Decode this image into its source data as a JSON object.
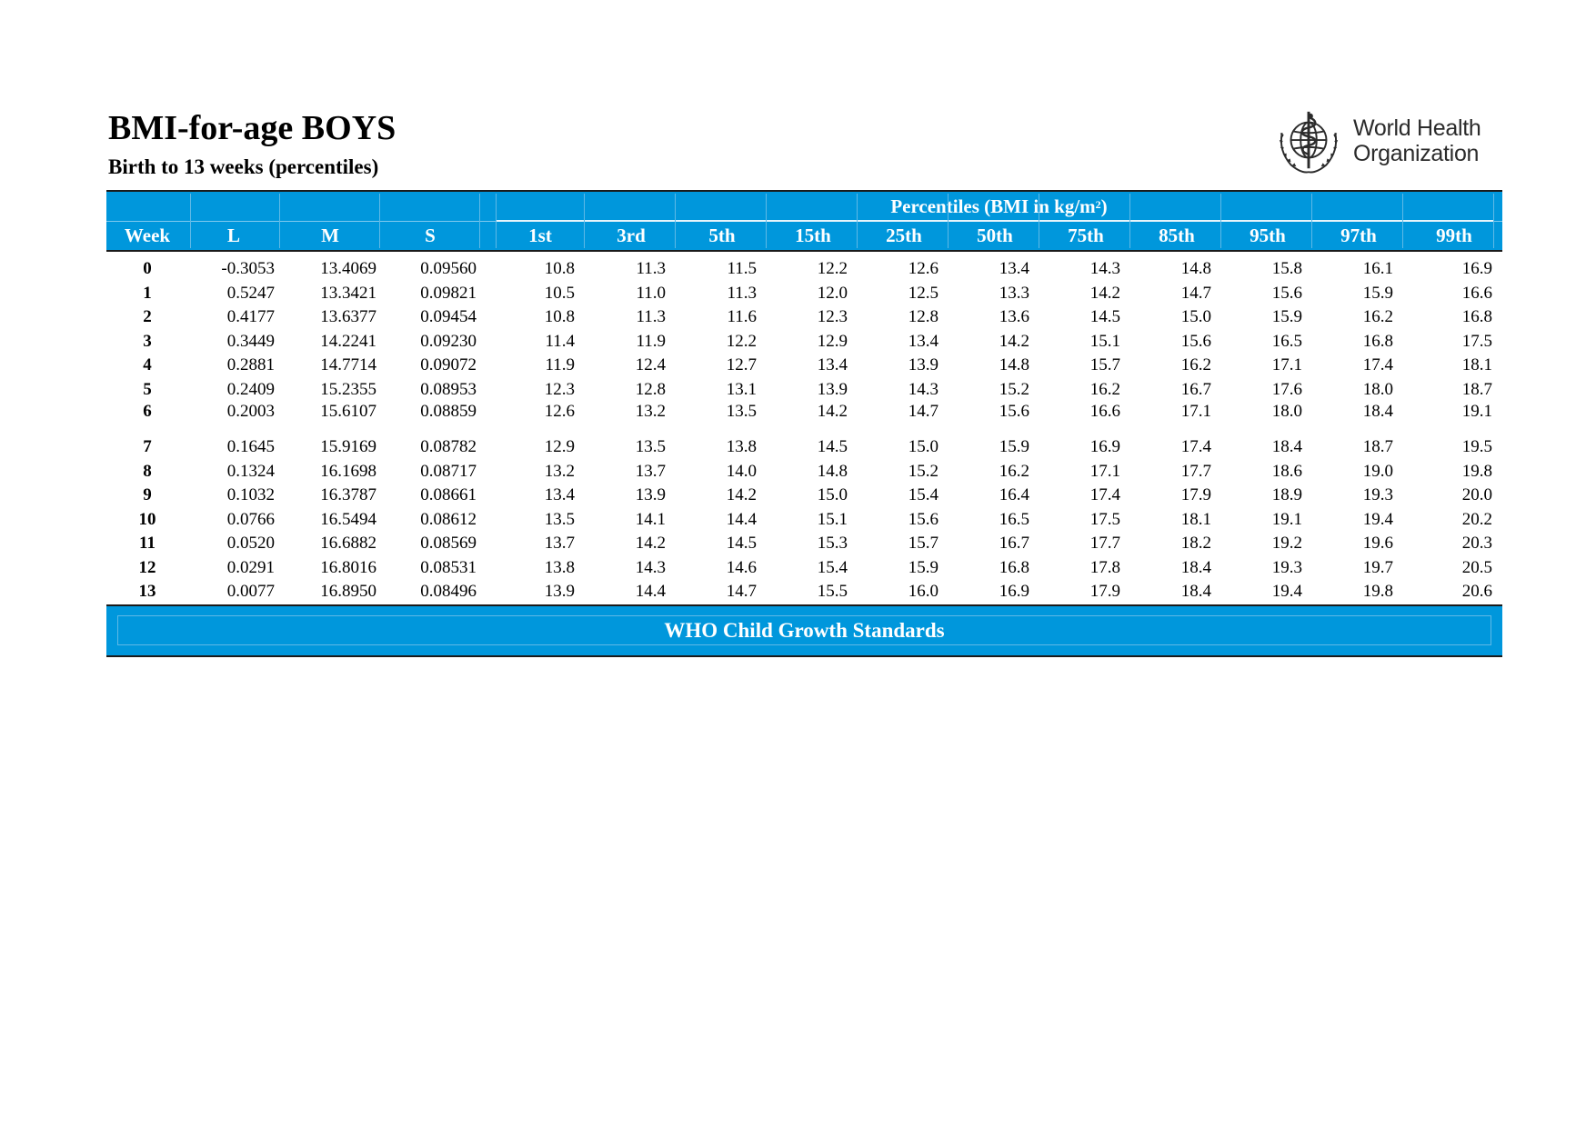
{
  "title": "BMI-for-age BOYS",
  "subtitle": "Birth to 13 weeks (percentiles)",
  "logo": {
    "line1": "World Health",
    "line2": "Organization",
    "icon": "who-emblem-icon"
  },
  "header": {
    "percentiles_title": "Percentiles (BMI in kg/m",
    "percentiles_sup": "2",
    "percentiles_close": ")",
    "columns": [
      "Week",
      "L",
      "M",
      "S",
      "1st",
      "3rd",
      "5th",
      "15th",
      "25th",
      "50th",
      "75th",
      "85th",
      "95th",
      "97th",
      "99th"
    ]
  },
  "rows": [
    [
      "0",
      "-0.3053",
      "13.4069",
      "0.09560",
      "10.8",
      "11.3",
      "11.5",
      "12.2",
      "12.6",
      "13.4",
      "14.3",
      "14.8",
      "15.8",
      "16.1",
      "16.9"
    ],
    [
      "1",
      "0.5247",
      "13.3421",
      "0.09821",
      "10.5",
      "11.0",
      "11.3",
      "12.0",
      "12.5",
      "13.3",
      "14.2",
      "14.7",
      "15.6",
      "15.9",
      "16.6"
    ],
    [
      "2",
      "0.4177",
      "13.6377",
      "0.09454",
      "10.8",
      "11.3",
      "11.6",
      "12.3",
      "12.8",
      "13.6",
      "14.5",
      "15.0",
      "15.9",
      "16.2",
      "16.8"
    ],
    [
      "3",
      "0.3449",
      "14.2241",
      "0.09230",
      "11.4",
      "11.9",
      "12.2",
      "12.9",
      "13.4",
      "14.2",
      "15.1",
      "15.6",
      "16.5",
      "16.8",
      "17.5"
    ],
    [
      "4",
      "0.2881",
      "14.7714",
      "0.09072",
      "11.9",
      "12.4",
      "12.7",
      "13.4",
      "13.9",
      "14.8",
      "15.7",
      "16.2",
      "17.1",
      "17.4",
      "18.1"
    ],
    [
      "5",
      "0.2409",
      "15.2355",
      "0.08953",
      "12.3",
      "12.8",
      "13.1",
      "13.9",
      "14.3",
      "15.2",
      "16.2",
      "16.7",
      "17.6",
      "18.0",
      "18.7"
    ],
    [
      "6",
      "0.2003",
      "15.6107",
      "0.08859",
      "12.6",
      "13.2",
      "13.5",
      "14.2",
      "14.7",
      "15.6",
      "16.6",
      "17.1",
      "18.0",
      "18.4",
      "19.1"
    ],
    [
      "7",
      "0.1645",
      "15.9169",
      "0.08782",
      "12.9",
      "13.5",
      "13.8",
      "14.5",
      "15.0",
      "15.9",
      "16.9",
      "17.4",
      "18.4",
      "18.7",
      "19.5"
    ],
    [
      "8",
      "0.1324",
      "16.1698",
      "0.08717",
      "13.2",
      "13.7",
      "14.0",
      "14.8",
      "15.2",
      "16.2",
      "17.1",
      "17.7",
      "18.6",
      "19.0",
      "19.8"
    ],
    [
      "9",
      "0.1032",
      "16.3787",
      "0.08661",
      "13.4",
      "13.9",
      "14.2",
      "15.0",
      "15.4",
      "16.4",
      "17.4",
      "17.9",
      "18.9",
      "19.3",
      "20.0"
    ],
    [
      "10",
      "0.0766",
      "16.5494",
      "0.08612",
      "13.5",
      "14.1",
      "14.4",
      "15.1",
      "15.6",
      "16.5",
      "17.5",
      "18.1",
      "19.1",
      "19.4",
      "20.2"
    ],
    [
      "11",
      "0.0520",
      "16.6882",
      "0.08569",
      "13.7",
      "14.2",
      "14.5",
      "15.3",
      "15.7",
      "16.7",
      "17.7",
      "18.2",
      "19.2",
      "19.6",
      "20.3"
    ],
    [
      "12",
      "0.0291",
      "16.8016",
      "0.08531",
      "13.8",
      "14.3",
      "14.6",
      "15.4",
      "15.9",
      "16.8",
      "17.8",
      "18.4",
      "19.3",
      "19.7",
      "20.5"
    ],
    [
      "13",
      "0.0077",
      "16.8950",
      "0.08496",
      "13.9",
      "14.4",
      "14.7",
      "15.5",
      "16.0",
      "16.9",
      "17.9",
      "18.4",
      "19.4",
      "19.8",
      "20.6"
    ]
  ],
  "footer": "WHO Child Growth Standards",
  "colors": {
    "header_blue": "#0097dc",
    "text": "#000000",
    "rule": "#1a1a1a"
  }
}
